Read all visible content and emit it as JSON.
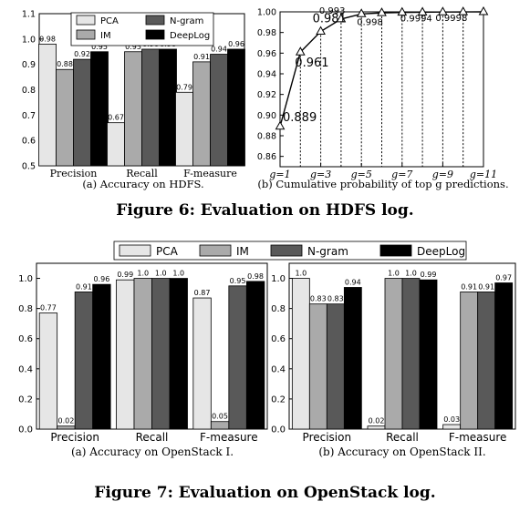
{
  "figures": [
    {
      "caption": "Figure 6: Evaluation on HDFS log."
    },
    {
      "caption": "Figure 7: Evaluation on OpenStack log."
    }
  ],
  "legend_series": [
    "PCA",
    "IM",
    "N-gram",
    "DeepLog"
  ],
  "series_colors": {
    "PCA": "#e6e6e6",
    "IM": "#aaaaaa",
    "N-gram": "#595959",
    "DeepLog": "#000000"
  },
  "chart_data": [
    {
      "id": "hdfs_accuracy",
      "type": "bar",
      "subcaption": "(a) Accuracy on HDFS.",
      "categories": [
        "Precision",
        "Recall",
        "F-measure"
      ],
      "series": [
        {
          "name": "PCA",
          "values": [
            0.98,
            0.67,
            0.79
          ],
          "labels": [
            "0.98",
            "0.67",
            "0.79"
          ]
        },
        {
          "name": "IM",
          "values": [
            0.88,
            0.95,
            0.91
          ],
          "labels": [
            "0.88",
            "0.95",
            "0.91"
          ]
        },
        {
          "name": "N-gram",
          "values": [
            0.92,
            0.96,
            0.94
          ],
          "labels": [
            "0.92",
            "0.96",
            "0.94"
          ]
        },
        {
          "name": "DeepLog",
          "values": [
            0.95,
            0.96,
            0.96
          ],
          "labels": [
            "0.95",
            "0.96",
            "0.96"
          ]
        }
      ],
      "ylim": [
        0.5,
        1.1
      ],
      "yticks": [
        "0.5",
        "0.6",
        "0.7",
        "0.8",
        "0.9",
        "1.0",
        "1.1"
      ],
      "legend_position": "top-center"
    },
    {
      "id": "hdfs_topg",
      "type": "line",
      "subcaption": "(b) Cumulative probability of top g predictions.",
      "x": [
        1,
        2,
        3,
        4,
        5,
        6,
        7,
        8,
        9,
        10,
        11
      ],
      "y": [
        0.889,
        0.961,
        0.981,
        0.993,
        0.998,
        0.999,
        0.9994,
        0.9996,
        0.9998,
        0.9999,
        1.0
      ],
      "annotations": [
        {
          "x": 1,
          "label": "0.889"
        },
        {
          "x": 2,
          "label": "0.961"
        },
        {
          "x": 3,
          "label": "0.981"
        },
        {
          "x": 4,
          "label": "0.993"
        },
        {
          "x": 5,
          "label": "0.998"
        },
        {
          "x": 7,
          "label": "0.9994"
        },
        {
          "x": 9,
          "label": "0.9998"
        }
      ],
      "xtick_labels": [
        "g=1",
        "g=3",
        "g=5",
        "g=7",
        "g=9",
        "g=11"
      ],
      "xtick_values": [
        1,
        3,
        5,
        7,
        9,
        11
      ],
      "ylim": [
        0.85,
        1.0
      ],
      "yticks": [
        "0.86",
        "0.88",
        "0.90",
        "0.92",
        "0.94",
        "0.96",
        "0.98",
        "1.00"
      ],
      "grid": "vertical dotted lines at each point"
    },
    {
      "id": "openstack1",
      "type": "bar",
      "subcaption": "(a) Accuracy on OpenStack I.",
      "categories": [
        "Precision",
        "Recall",
        "F-measure"
      ],
      "series": [
        {
          "name": "PCA",
          "values": [
            0.77,
            0.99,
            0.87
          ],
          "labels": [
            "0.77",
            "0.99",
            "0.87"
          ]
        },
        {
          "name": "IM",
          "values": [
            0.02,
            1.0,
            0.05
          ],
          "labels": [
            "0.02",
            "1.0",
            "0.05"
          ]
        },
        {
          "name": "N-gram",
          "values": [
            0.91,
            1.0,
            0.95
          ],
          "labels": [
            "0.91",
            "1.0",
            "0.95"
          ]
        },
        {
          "name": "DeepLog",
          "values": [
            0.96,
            1.0,
            0.98
          ],
          "labels": [
            "0.96",
            "1.0",
            "0.98"
          ]
        }
      ],
      "ylim": [
        0.0,
        1.1
      ],
      "yticks": [
        "0.0",
        "0.2",
        "0.4",
        "0.6",
        "0.8",
        "1.0"
      ]
    },
    {
      "id": "openstack2",
      "type": "bar",
      "subcaption": "(b) Accuracy on OpenStack II.",
      "categories": [
        "Precision",
        "Recall",
        "F-measure"
      ],
      "series": [
        {
          "name": "PCA",
          "values": [
            1.0,
            0.02,
            0.03
          ],
          "labels": [
            "1.0",
            "0.02",
            "0.03"
          ]
        },
        {
          "name": "IM",
          "values": [
            0.83,
            1.0,
            0.91
          ],
          "labels": [
            "0.83",
            "1.0",
            "0.91"
          ]
        },
        {
          "name": "N-gram",
          "values": [
            0.83,
            1.0,
            0.91
          ],
          "labels": [
            "0.83",
            "1.0",
            "0.91"
          ]
        },
        {
          "name": "DeepLog",
          "values": [
            0.94,
            0.99,
            0.97
          ],
          "labels": [
            "0.94",
            "0.99",
            "0.97"
          ]
        }
      ],
      "ylim": [
        0.0,
        1.1
      ],
      "yticks": [
        "0.0",
        "0.2",
        "0.4",
        "0.6",
        "0.8",
        "1.0"
      ]
    }
  ]
}
